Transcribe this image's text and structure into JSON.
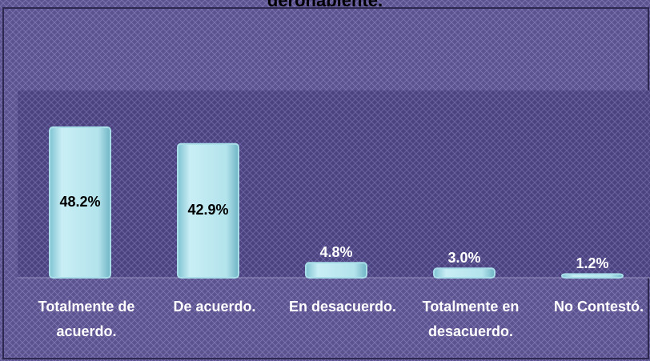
{
  "chart_data": {
    "type": "bar",
    "title": "derohabiente.",
    "categories": [
      "Totalmente de acuerdo.",
      "De acuerdo.",
      "En desacuerdo.",
      "Totalmente en desacuerdo.",
      "No Contestó."
    ],
    "values": [
      48.2,
      42.9,
      4.8,
      3.0,
      1.2
    ],
    "value_labels": [
      "48.2%",
      "42.9%",
      "4.8%",
      "3.0%",
      "1.2%"
    ],
    "color": "#a9dfe9",
    "ylim": [
      0,
      60
    ]
  }
}
